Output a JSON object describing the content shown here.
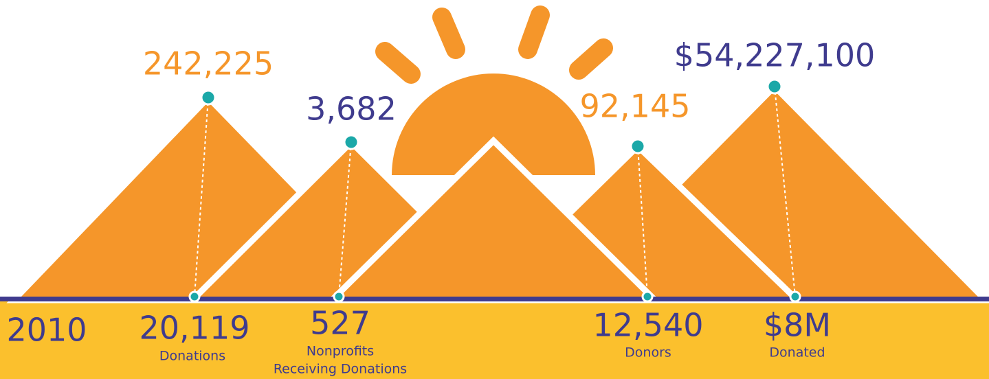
{
  "start_year": "2010",
  "milestones": [
    {
      "top_value": "242,225",
      "bottom_value": "20,119",
      "bottom_label": [
        "Donations"
      ]
    },
    {
      "top_value": "3,682",
      "bottom_value": "527",
      "bottom_label": [
        "Nonprofits",
        "Receiving Donations"
      ]
    },
    {
      "top_value": "92,145",
      "bottom_value": "12,540",
      "bottom_label": [
        "Donors"
      ]
    },
    {
      "top_value": "$54,227,100",
      "bottom_value": "$8M",
      "bottom_label": [
        "Donated"
      ]
    }
  ]
}
